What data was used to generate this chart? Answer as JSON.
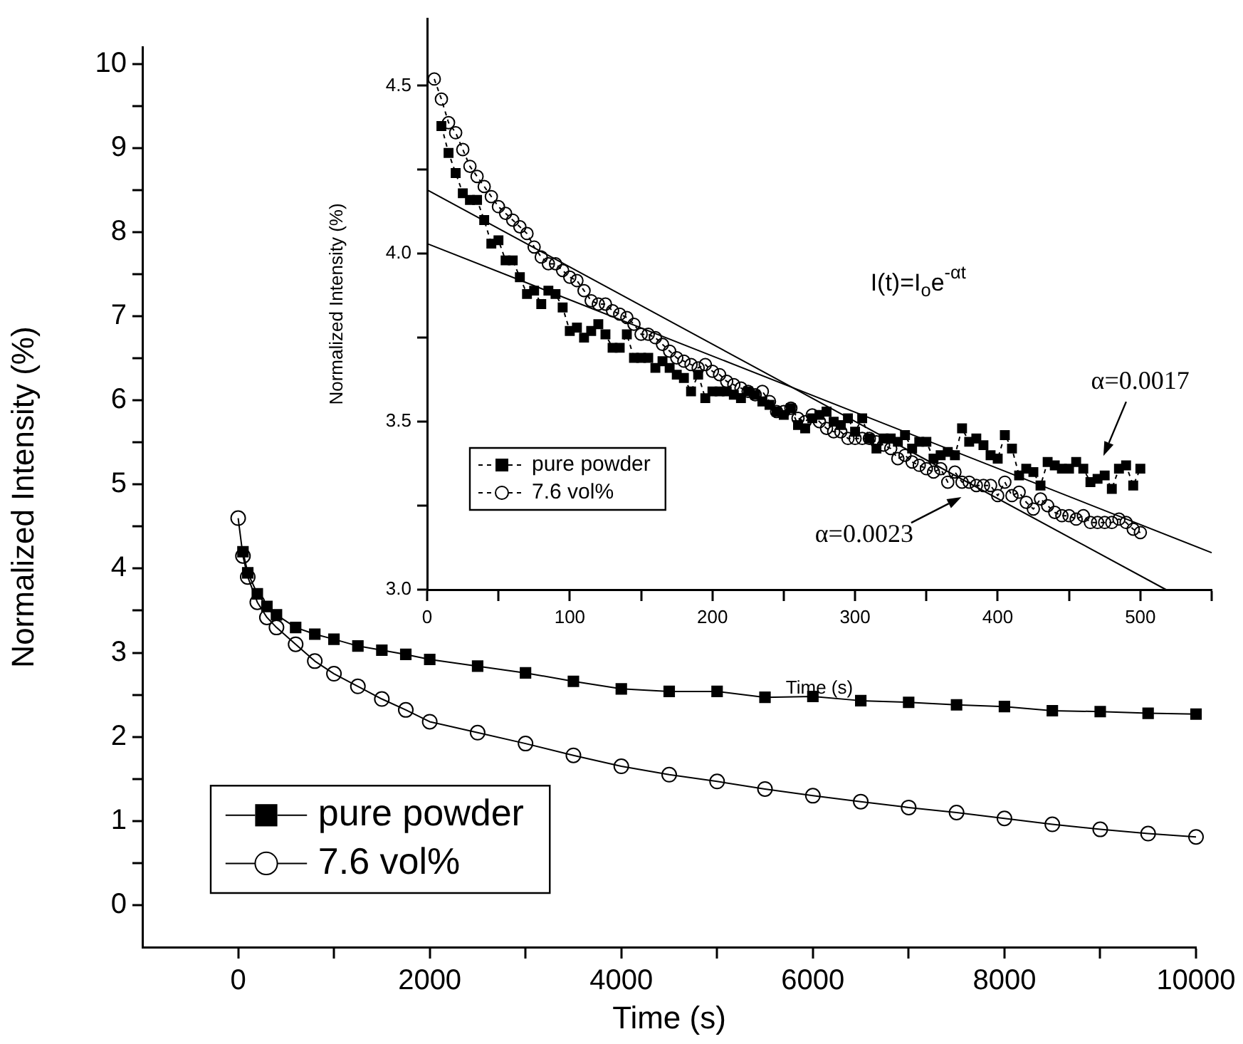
{
  "chart_data": [
    {
      "type": "scatter",
      "xlabel": "Time (s)",
      "ylabel": "Normalized Intensity (%)",
      "xlim": [
        -1000,
        10000
      ],
      "xticks": [
        0,
        {
          "value": 1000,
          "label": null
        },
        2000,
        {
          "value": 3000,
          "label": null
        },
        4000,
        {
          "value": 5000,
          "label": null
        },
        6000,
        {
          "value": 7000,
          "label": null
        },
        8000,
        {
          "value": 9000,
          "label": null
        },
        10000
      ],
      "ylim": [
        -0.5,
        10.2
      ],
      "yticks": [
        0,
        {
          "value": 0.5,
          "label": null
        },
        1,
        {
          "value": 1.5,
          "label": null
        },
        2,
        {
          "value": 2.5,
          "label": null
        },
        3,
        {
          "value": 3.5,
          "label": null
        },
        4,
        {
          "value": 4.5,
          "label": null
        },
        5,
        {
          "value": 5.5,
          "label": null
        },
        6,
        {
          "value": 6.5,
          "label": null
        },
        7,
        {
          "value": 7.5,
          "label": null
        },
        8,
        {
          "value": 8.5,
          "label": null
        },
        9,
        {
          "value": 9.5,
          "label": null
        },
        10
      ],
      "legend": "bottom left",
      "series": [
        {
          "type": "line",
          "name": "pure powder",
          "color": "#000000",
          "marker": "square",
          "line_style": "solid",
          "x": [
            50,
            100,
            200,
            300,
            400,
            600,
            800,
            1000,
            1250,
            1500,
            1750,
            2000,
            2500,
            3000,
            3500,
            4000,
            4500,
            5000,
            5500,
            6000,
            6500,
            7000,
            7500,
            8000,
            8500,
            9000,
            9500,
            10000
          ],
          "values": [
            4.2,
            3.95,
            3.7,
            3.55,
            3.45,
            3.3,
            3.22,
            3.16,
            3.08,
            3.03,
            2.98,
            2.92,
            2.84,
            2.76,
            2.66,
            2.57,
            2.54,
            2.54,
            2.47,
            2.48,
            2.43,
            2.41,
            2.38,
            2.36,
            2.31,
            2.3,
            2.28,
            2.27
          ]
        },
        {
          "type": "line",
          "name": "7.6 vol%",
          "color": "#000000",
          "marker": "circle",
          "line_style": "solid",
          "x": [
            0,
            50,
            100,
            200,
            300,
            400,
            600,
            800,
            1000,
            1250,
            1500,
            1750,
            2000,
            2500,
            3000,
            3500,
            4000,
            4500,
            5000,
            5500,
            6000,
            6500,
            7000,
            7500,
            8000,
            8500,
            9000,
            9500,
            10000
          ],
          "values": [
            4.6,
            4.15,
            3.9,
            3.6,
            3.42,
            3.3,
            3.1,
            2.9,
            2.75,
            2.6,
            2.45,
            2.32,
            2.18,
            2.05,
            1.92,
            1.78,
            1.65,
            1.55,
            1.47,
            1.38,
            1.3,
            1.23,
            1.16,
            1.1,
            1.03,
            0.96,
            0.9,
            0.85,
            0.81
          ]
        }
      ]
    },
    {
      "type": "scatter",
      "xlabel": "Time (s)",
      "ylabel": "Normalized Intensity (%)",
      "xlim": [
        0,
        550
      ],
      "xticks": [
        0,
        {
          "value": 50,
          "label": null
        },
        100,
        {
          "value": 150,
          "label": null
        },
        200,
        {
          "value": 250,
          "label": null
        },
        300,
        {
          "value": 350,
          "label": null
        },
        400,
        {
          "value": 450,
          "label": null
        },
        500,
        {
          "value": 550,
          "label": null
        }
      ],
      "ylim": [
        3.0,
        4.7
      ],
      "yticks": [
        {
          "value": 3,
          "label": "3.0"
        },
        {
          "value": 3.25,
          "label": null
        },
        3.5,
        {
          "value": 3.75,
          "label": null
        },
        {
          "value": 4,
          "label": "4.0"
        },
        {
          "value": 4.25,
          "label": null
        },
        4.5
      ],
      "legend": "bottom left",
      "annotations": [
        "I(t)=I$_{o}$e$^{-αt}$",
        "α=0.0017",
        "α=0.0023"
      ],
      "series": [
        {
          "type": "line",
          "name": "pure powder",
          "color": "#000000",
          "marker": "square",
          "line_style": "dashed",
          "x": [
            10,
            15,
            20,
            25,
            30,
            35,
            40,
            45,
            50,
            55,
            60,
            65,
            70,
            75,
            80,
            85,
            90,
            95,
            100,
            105,
            110,
            115,
            120,
            125,
            130,
            135,
            140,
            145,
            150,
            155,
            160,
            165,
            170,
            175,
            180,
            185,
            190,
            195,
            200,
            205,
            210,
            215,
            220,
            225,
            230,
            235,
            240,
            245,
            250,
            255,
            260,
            265,
            270,
            275,
            280,
            285,
            290,
            295,
            300,
            305,
            310,
            315,
            320,
            325,
            330,
            335,
            340,
            345,
            350,
            355,
            360,
            365,
            370,
            375,
            380,
            385,
            390,
            395,
            400,
            405,
            410,
            415,
            420,
            425,
            430,
            435,
            440,
            445,
            450,
            455,
            460,
            465,
            470,
            475,
            480,
            485,
            490,
            495,
            500
          ],
          "values": [
            4.38,
            4.3,
            4.24,
            4.18,
            4.16,
            4.16,
            4.1,
            4.03,
            4.04,
            3.98,
            3.98,
            3.93,
            3.88,
            3.89,
            3.85,
            3.89,
            3.88,
            3.84,
            3.77,
            3.78,
            3.75,
            3.77,
            3.79,
            3.76,
            3.72,
            3.72,
            3.76,
            3.69,
            3.69,
            3.69,
            3.66,
            3.68,
            3.66,
            3.64,
            3.63,
            3.59,
            3.64,
            3.57,
            3.59,
            3.59,
            3.59,
            3.58,
            3.57,
            3.59,
            3.58,
            3.56,
            3.55,
            3.53,
            3.52,
            3.54,
            3.49,
            3.48,
            3.51,
            3.52,
            3.53,
            3.5,
            3.49,
            3.51,
            3.47,
            3.51,
            3.45,
            3.42,
            3.45,
            3.45,
            3.44,
            3.46,
            3.42,
            3.44,
            3.44,
            3.39,
            3.4,
            3.41,
            3.4,
            3.48,
            3.44,
            3.45,
            3.43,
            3.4,
            3.39,
            3.46,
            3.42,
            3.34,
            3.36,
            3.35,
            3.31,
            3.38,
            3.37,
            3.36,
            3.36,
            3.38,
            3.36,
            3.32,
            3.33,
            3.34,
            3.3,
            3.36,
            3.37,
            3.31,
            3.36
          ]
        },
        {
          "type": "line",
          "name": "7.6 vol%",
          "color": "#000000",
          "marker": "circle",
          "line_style": "dashed",
          "x": [
            5,
            10,
            15,
            20,
            25,
            30,
            35,
            40,
            45,
            50,
            55,
            60,
            65,
            70,
            75,
            80,
            85,
            90,
            95,
            100,
            105,
            110,
            115,
            120,
            125,
            130,
            135,
            140,
            145,
            150,
            155,
            160,
            165,
            170,
            175,
            180,
            185,
            190,
            195,
            200,
            205,
            210,
            215,
            220,
            225,
            230,
            235,
            240,
            245,
            250,
            255,
            260,
            265,
            270,
            275,
            280,
            285,
            290,
            295,
            300,
            305,
            310,
            315,
            320,
            325,
            330,
            335,
            340,
            345,
            350,
            355,
            360,
            365,
            370,
            375,
            380,
            385,
            390,
            395,
            400,
            405,
            410,
            415,
            420,
            425,
            430,
            435,
            440,
            445,
            450,
            455,
            460,
            465,
            470,
            475,
            480,
            485,
            490,
            495,
            500
          ],
          "values": [
            4.52,
            4.46,
            4.39,
            4.36,
            4.31,
            4.26,
            4.23,
            4.2,
            4.17,
            4.14,
            4.12,
            4.1,
            4.08,
            4.06,
            4.02,
            3.99,
            3.97,
            3.97,
            3.95,
            3.93,
            3.92,
            3.89,
            3.86,
            3.85,
            3.85,
            3.83,
            3.82,
            3.81,
            3.79,
            3.76,
            3.76,
            3.75,
            3.73,
            3.71,
            3.69,
            3.68,
            3.67,
            3.66,
            3.67,
            3.65,
            3.64,
            3.62,
            3.61,
            3.6,
            3.59,
            3.58,
            3.59,
            3.56,
            3.53,
            3.53,
            3.54,
            3.51,
            3.5,
            3.52,
            3.5,
            3.48,
            3.47,
            3.47,
            3.45,
            3.45,
            3.45,
            3.45,
            3.44,
            3.43,
            3.42,
            3.39,
            3.4,
            3.38,
            3.37,
            3.36,
            3.35,
            3.36,
            3.32,
            3.35,
            3.32,
            3.32,
            3.31,
            3.31,
            3.31,
            3.28,
            3.32,
            3.28,
            3.29,
            3.26,
            3.24,
            3.27,
            3.25,
            3.23,
            3.22,
            3.22,
            3.21,
            3.22,
            3.2,
            3.2,
            3.2,
            3.2,
            3.21,
            3.2,
            3.18,
            3.17
          ]
        },
        {
          "type": "line",
          "color": "#000000",
          "marker": "none",
          "line_style": "solid",
          "x": [
            0,
            550
          ],
          "values": [
            4.03,
            3.11
          ]
        },
        {
          "type": "line",
          "color": "#000000",
          "marker": "none",
          "line_style": "solid",
          "x": [
            0,
            518
          ],
          "values": [
            4.19,
            3.0
          ]
        }
      ]
    }
  ]
}
